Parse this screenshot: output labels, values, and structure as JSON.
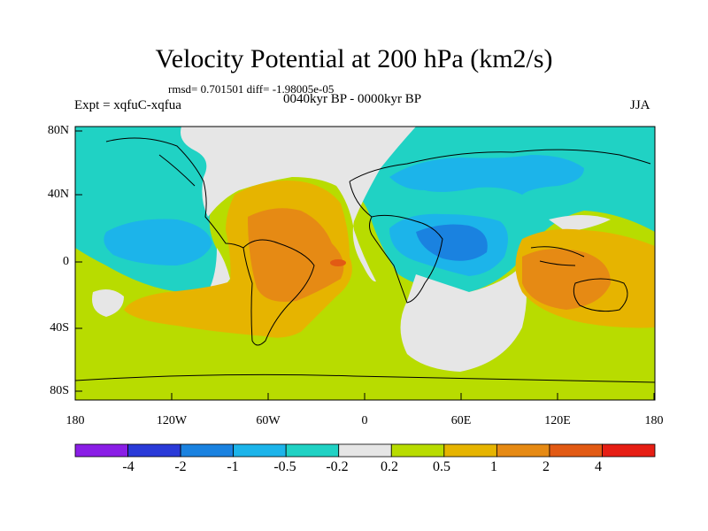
{
  "title": "Velocity Potential at 200 hPa (km2/s)",
  "stats_line": "rmsd= 0.701501 diff= -1.98005e-05",
  "experiment": "Expt = xqfuC-xqfua",
  "period": "0040kyr BP - 0000kyr BP",
  "season": "JJA",
  "lat_ticks": [
    "80N",
    "40N",
    "0",
    "40S",
    "80S"
  ],
  "lon_ticks": [
    "180",
    "120W",
    "60W",
    "0",
    "60E",
    "120E",
    "180"
  ],
  "colorbar": {
    "labels": [
      "-4",
      "-2",
      "-1",
      "-0.5",
      "-0.2",
      "0.2",
      "0.5",
      "1",
      "2",
      "4"
    ],
    "colors": [
      "#8a1ee6",
      "#2a3ad8",
      "#1a82e0",
      "#1cb4ea",
      "#20d2c4",
      "#e6e6e6",
      "#b8dc00",
      "#e6b400",
      "#e68a14",
      "#e25a14",
      "#e61e14"
    ]
  },
  "colors": {
    "land_outline": "#000000",
    "frame": "#000000"
  }
}
